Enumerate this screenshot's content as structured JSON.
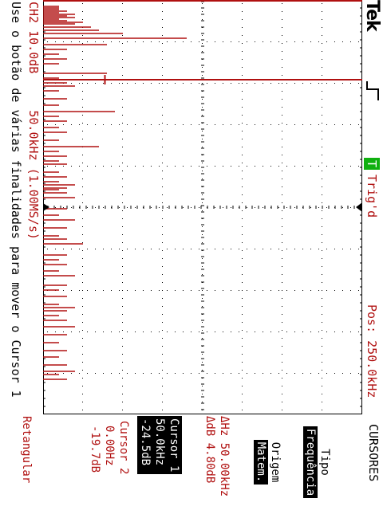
{
  "header": {
    "brand": "Tek",
    "trigger_badge": "T",
    "trigger_status": "Trig'd",
    "position": "Pos: 250.0kHz"
  },
  "menu": {
    "title": "CURSORES",
    "tipo_label": "Tipo",
    "tipo_value": "Frequência",
    "origem_label": "Origem",
    "origem_value": "Matem.",
    "delta_hz": "ΔHz 50.00kHz",
    "delta_db": "ΔdB 4.80dB",
    "cursor1_title": "Cursor 1",
    "cursor1_freq": "50.0kHz",
    "cursor1_level": "-24.5dB",
    "cursor2_title": "Cursor 2",
    "cursor2_freq": "0.00Hz",
    "cursor2_level": "-19.7dB",
    "window": "Retangular"
  },
  "status": {
    "channel": "CH2 10.0dB",
    "timebase": "50.0kHz (1.00MS/s)",
    "hint": "Use o botão de várias finalidades para mover o Cursor 1"
  },
  "colors": {
    "trace": "#b01010",
    "grid": "#000000",
    "badge": "#10b010"
  },
  "chart_data": {
    "type": "bar",
    "x": [
      8,
      10,
      12,
      14,
      16,
      18,
      20,
      22,
      24,
      26,
      28,
      30,
      34,
      38,
      42,
      48,
      56,
      62,
      68,
      74,
      80,
      92,
      98,
      104,
      108,
      114,
      124,
      132,
      140,
      146,
      152,
      160,
      166,
      176,
      184,
      190,
      196,
      202,
      206,
      216,
      222,
      228,
      232,
      236,
      238,
      242,
      248,
      262,
      270,
      276,
      286,
      296,
      300,
      306,
      320,
      326,
      332,
      340,
      346,
      358,
      364,
      372,
      382,
      386,
      390,
      396,
      402,
      410,
      420,
      430,
      440,
      448,
      458,
      466,
      470,
      476
    ],
    "values": [
      -36,
      -36,
      -36,
      -34,
      -36,
      -32,
      -34,
      -32,
      -36,
      -34,
      -30,
      -32,
      -28,
      -26,
      -20,
      -4,
      -24,
      -34,
      -36,
      -34,
      -36,
      -24,
      -36,
      -34,
      -32,
      -36,
      -34,
      -36,
      -22,
      -36,
      -34,
      -36,
      -34,
      -36,
      -26,
      -36,
      -34,
      -36,
      -34,
      -36,
      -34,
      -36,
      -32,
      -34,
      -36,
      -34,
      -32,
      -34,
      -36,
      -32,
      -34,
      -36,
      -34,
      -30,
      -34,
      -36,
      -34,
      -36,
      -32,
      -34,
      -36,
      -34,
      -36,
      -32,
      -34,
      -36,
      -34,
      -32,
      -34,
      -36,
      -34,
      -36,
      -34,
      -32,
      -36,
      -34
    ],
    "xlim": [
      0,
      520
    ],
    "ylim": [
      -40,
      40
    ],
    "cursor1_x": 100,
    "cursor2_x": 0,
    "trigger_marker_x": 260,
    "grid": true
  }
}
